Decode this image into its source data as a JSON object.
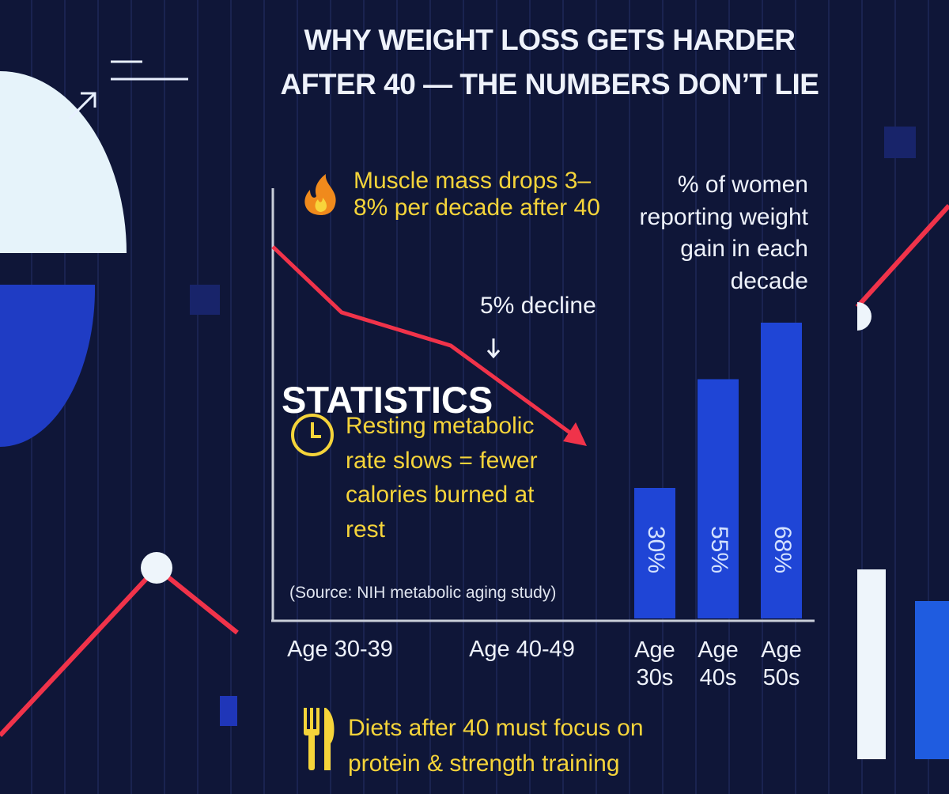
{
  "title": [
    "WHY WEIGHT LOSS GETS HARDER",
    "AFTER 40 — THE NUMBERS DON’T LIE"
  ],
  "section_label": "STATISTICS",
  "muscle_note": "Muscle mass drops 3–8% per decade after 40",
  "decline_note": "5% decline",
  "metabolic_note": "Resting metabolic rate slows = fewer calories burned at rest",
  "source": "(Source: NIH metabolic aging study)",
  "line_labels": [
    "Age 30-39",
    "Age 40-49"
  ],
  "footer": "Diets after 40 must focus on protein & strength training",
  "chart_data": {
    "type": "bar",
    "title": "% of women reporting weight gain in each decade",
    "categories": [
      "Age 30s",
      "Age 40s",
      "Age 50s"
    ],
    "values": [
      30,
      55,
      68
    ],
    "value_labels": [
      "30%",
      "55%",
      "68%"
    ],
    "color": "#1f45d6",
    "ylim": [
      0,
      80
    ]
  }
}
